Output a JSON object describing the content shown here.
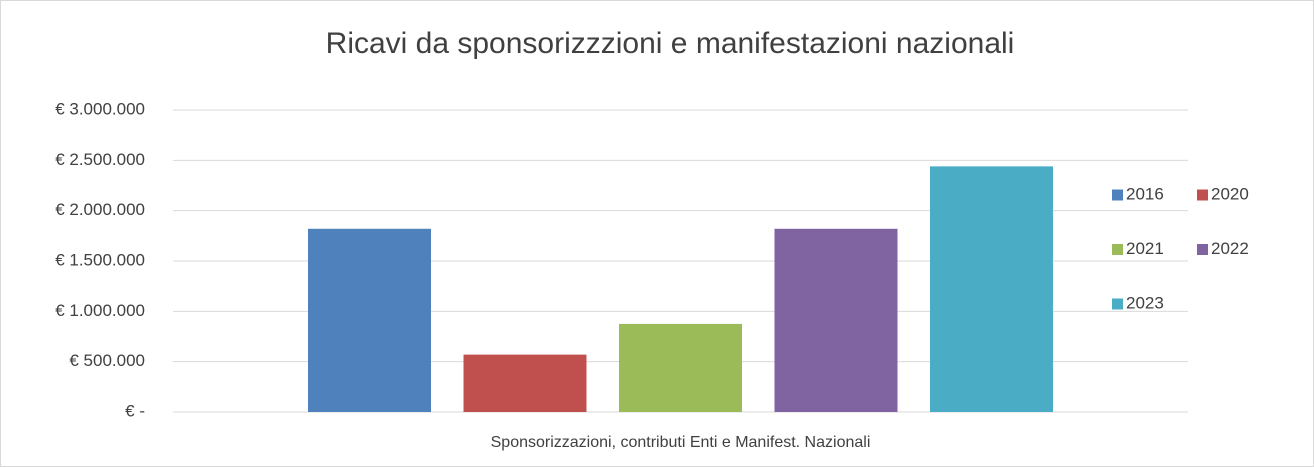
{
  "chart_data": {
    "type": "bar",
    "title": "Ricavi da sponsorizzzioni e manifestazioni nazionali",
    "categories": [
      "Sponsorizzazioni, contributi Enti e Manifest. Nazionali"
    ],
    "series": [
      {
        "name": "2016",
        "color": "#4f81bd",
        "values": [
          1820000
        ]
      },
      {
        "name": "2020",
        "color": "#c0504d",
        "values": [
          570000
        ]
      },
      {
        "name": "2021",
        "color": "#9bbb59",
        "values": [
          875000
        ]
      },
      {
        "name": "2022",
        "color": "#8064a2",
        "values": [
          1820000
        ]
      },
      {
        "name": "2023",
        "color": "#4bacc6",
        "values": [
          2440000
        ]
      }
    ],
    "ylim": [
      0,
      3000000
    ],
    "yticks": [
      {
        "value": 0,
        "label": "€ -"
      },
      {
        "value": 500000,
        "label": "€ 500.000"
      },
      {
        "value": 1000000,
        "label": "€ 1.000.000"
      },
      {
        "value": 1500000,
        "label": "€ 1.500.000"
      },
      {
        "value": 2000000,
        "label": "€ 2.000.000"
      },
      {
        "value": 2500000,
        "label": "€ 2.500.000"
      },
      {
        "value": 3000000,
        "label": "€ 3.000.000"
      }
    ],
    "grid": true,
    "legend": "right"
  }
}
